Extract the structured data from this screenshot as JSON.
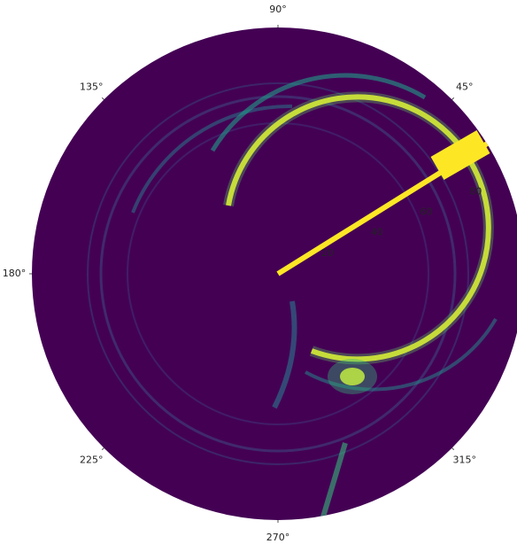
{
  "chart_data": {
    "type": "polar",
    "xticks": [
      {
        "value": 45,
        "label": "45°"
      },
      {
        "value": 90,
        "label": "90°"
      },
      {
        "value": 135,
        "label": "135°"
      },
      {
        "value": 180,
        "label": "180°"
      },
      {
        "value": 225,
        "label": "225°"
      },
      {
        "value": 270,
        "label": "270°"
      },
      {
        "value": 315,
        "label": "315°"
      }
    ],
    "ylim": [
      0,
      92
    ],
    "yticks": [
      20,
      40,
      60,
      80
    ],
    "background": "#440154"
  }
}
